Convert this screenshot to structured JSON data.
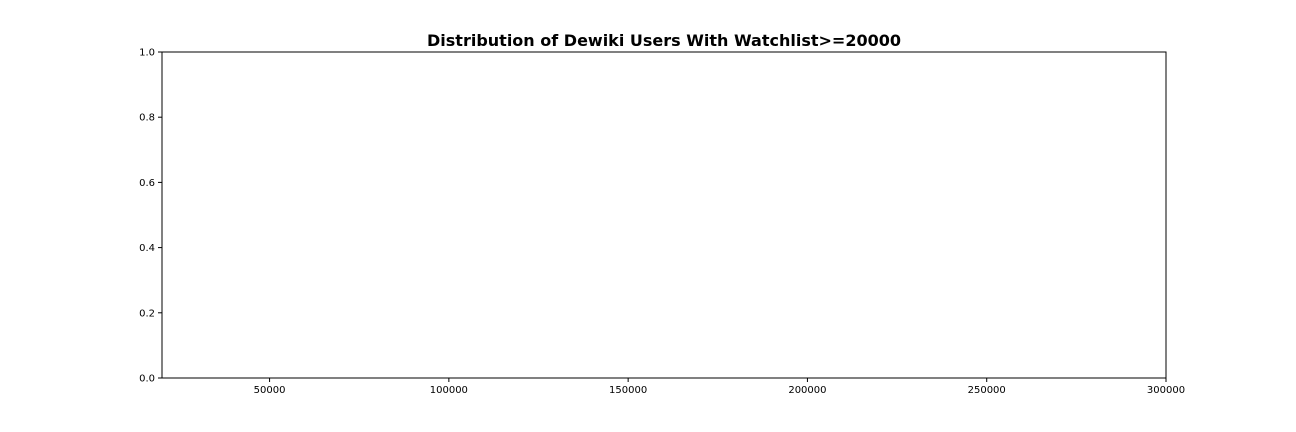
{
  "chart_data": {
    "type": "bar",
    "title": "Distribution of Dewiki Users With Watchlist>=20000",
    "xlabel": "",
    "ylabel": "",
    "xlim": [
      20000,
      300000
    ],
    "ylim": [
      0,
      1
    ],
    "x_ticks": [
      50000,
      100000,
      150000,
      200000,
      250000,
      300000
    ],
    "x_tick_labels": [
      "50000",
      "100000",
      "150000",
      "200000",
      "250000",
      "300000"
    ],
    "y_ticks": [
      0,
      0.2,
      0.4,
      0.6,
      0.8,
      1.0
    ],
    "y_tick_labels": [
      "0.0",
      "0.2",
      "0.4",
      "0.6",
      "0.8",
      "1.0"
    ],
    "series": [],
    "grid": false,
    "colors": {
      "axes": "#000000",
      "background": "#ffffff"
    }
  }
}
